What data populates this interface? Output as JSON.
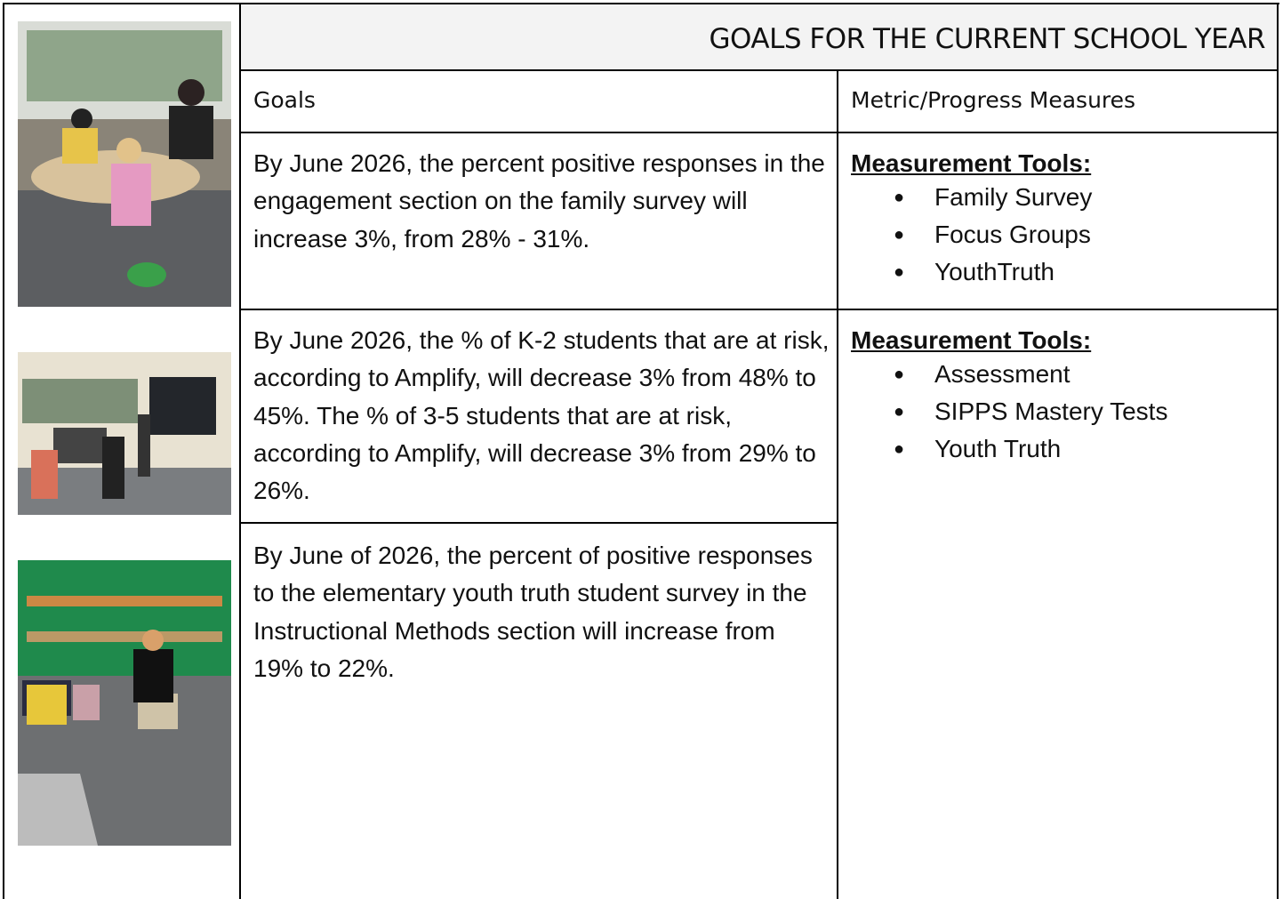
{
  "header": {
    "title": "GOALS FOR THE CURRENT SCHOOL YEAR"
  },
  "table": {
    "headers": [
      "Goals",
      "Metric/Progress Measures"
    ],
    "rows": [
      {
        "goal": "By June 2026, the percent positive responses in the engagement section on the family survey will increase 3%, from 28% - 31%.",
        "metric": {
          "heading": "Measurement Tools:",
          "items": [
            "Family Survey",
            "Focus Groups",
            "YouthTruth"
          ]
        }
      },
      {
        "goal": "By June 2026, the % of K-2 students that are at risk, according to Amplify, will decrease 3% from 48% to 45%.  The % of 3-5 students that are at risk, according to Amplify, will decrease 3% from 29% to 26%.",
        "metric": {
          "heading": "Measurement Tools:",
          "items": [
            "Assessment",
            "SIPPS Mastery Tests",
            "Youth Truth"
          ]
        }
      },
      {
        "goal": "By June of 2026, the percent of positive responses to the elementary youth truth student survey in the Instructional Methods section will increase from 19% to 22%."
      }
    ]
  }
}
